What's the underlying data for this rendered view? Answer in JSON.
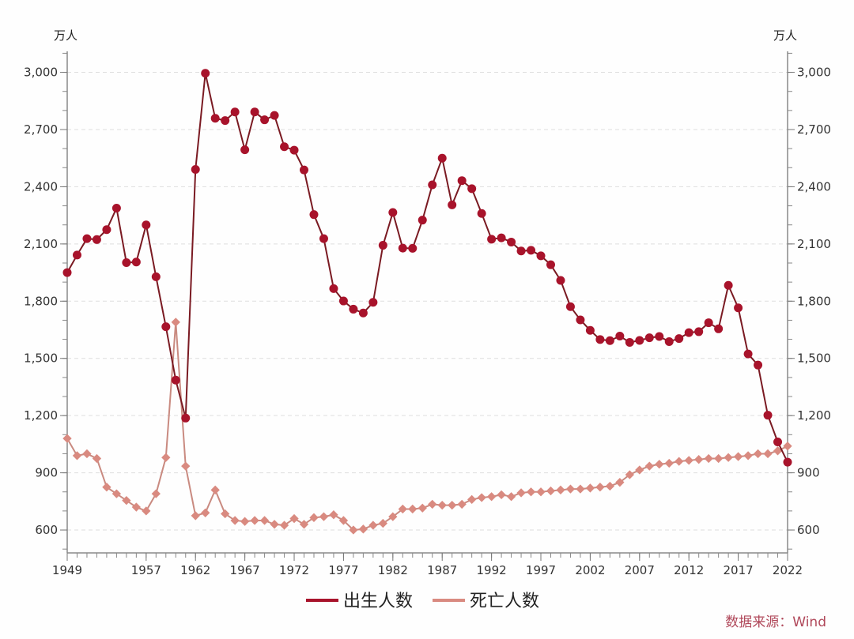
{
  "chart_data": {
    "type": "line",
    "title": "",
    "y_unit_left": "万人",
    "y_unit_right": "万人",
    "xlabel": "",
    "ylabel": "",
    "xlim": [
      1949,
      2022
    ],
    "ylim": [
      480,
      3110
    ],
    "x_tick_labels": [
      "1949",
      "1957",
      "1962",
      "1967",
      "1972",
      "1977",
      "1982",
      "1987",
      "1992",
      "1997",
      "2002",
      "2007",
      "2012",
      "2017",
      "2022"
    ],
    "y_tick_labels": [
      "600",
      "900",
      "1,200",
      "1,500",
      "1,800",
      "2,100",
      "2,400",
      "2,700",
      "3,000"
    ],
    "y_ticks": [
      600,
      900,
      1200,
      1500,
      1800,
      2100,
      2400,
      2700,
      3000
    ],
    "grid": "horizontal dashed",
    "legend_position": "bottom",
    "source": "数据来源：Wind",
    "x": [
      1949,
      1950,
      1951,
      1952,
      1953,
      1954,
      1955,
      1956,
      1957,
      1958,
      1959,
      1960,
      1961,
      1962,
      1963,
      1964,
      1965,
      1966,
      1967,
      1968,
      1969,
      1970,
      1971,
      1972,
      1973,
      1974,
      1975,
      1976,
      1977,
      1978,
      1979,
      1980,
      1981,
      1982,
      1983,
      1984,
      1985,
      1986,
      1987,
      1988,
      1989,
      1990,
      1991,
      1992,
      1993,
      1994,
      1995,
      1996,
      1997,
      1998,
      1999,
      2000,
      2001,
      2002,
      2003,
      2004,
      2005,
      2006,
      2007,
      2008,
      2009,
      2010,
      2011,
      2012,
      2013,
      2014,
      2015,
      2016,
      2017,
      2018,
      2019,
      2020,
      2021,
      2022
    ],
    "series": [
      {
        "name": "出生人数",
        "color": "#a8132b",
        "marker": "circle",
        "values": [
          1950,
          2042,
          2128,
          2123,
          2175,
          2288,
          2002,
          2005,
          2200,
          1928,
          1666,
          1386,
          1187,
          2491,
          2995,
          2759,
          2747,
          2792,
          2594,
          2792,
          2751,
          2774,
          2610,
          2592,
          2488,
          2254,
          2128,
          1866,
          1801,
          1758,
          1738,
          1794,
          2093,
          2265,
          2078,
          2077,
          2225,
          2410,
          2550,
          2305,
          2432,
          2390,
          2260,
          2125,
          2132,
          2110,
          2063,
          2067,
          2038,
          1991,
          1909,
          1771,
          1702,
          1647,
          1599,
          1593,
          1617,
          1584,
          1594,
          1608,
          1615,
          1588,
          1604,
          1635,
          1640,
          1687,
          1655,
          1883,
          1765,
          1523,
          1465,
          1202,
          1062,
          956
        ]
      },
      {
        "name": "死亡人数",
        "color": "#d98a80",
        "marker": "diamond",
        "values": [
          1080,
          990,
          1000,
          975,
          825,
          790,
          755,
          720,
          700,
          790,
          980,
          1690,
          935,
          675,
          690,
          810,
          685,
          650,
          645,
          650,
          650,
          630,
          625,
          660,
          630,
          665,
          670,
          680,
          650,
          600,
          605,
          625,
          635,
          670,
          710,
          710,
          715,
          735,
          730,
          730,
          735,
          760,
          770,
          775,
          785,
          775,
          795,
          800,
          800,
          805,
          810,
          815,
          815,
          820,
          825,
          830,
          850,
          890,
          915,
          935,
          945,
          950,
          960,
          965,
          970,
          975,
          975,
          980,
          985,
          990,
          1000,
          1000,
          1015,
          1040
        ]
      }
    ]
  }
}
